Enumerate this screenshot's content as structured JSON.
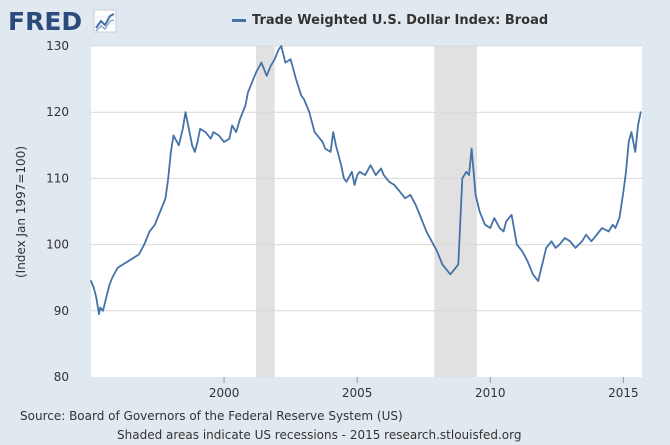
{
  "logo": {
    "text": "FRED",
    "icon": "fred-line-graph-icon"
  },
  "legend": {
    "label": "Trade Weighted U.S. Dollar Index: Broad",
    "color": "#4572a7"
  },
  "footer": {
    "source": "Source: Board of Governors of the Federal Reserve System (US)",
    "note": "Shaded areas indicate US recessions - 2015 research.stlouisfed.org"
  },
  "chart_data": {
    "type": "line",
    "ylabel": "(Index Jan 1997=100)",
    "xlabel": "",
    "xlim": [
      1995.0,
      2015.7
    ],
    "ylim": [
      80,
      130
    ],
    "x_ticks": [
      2000,
      2005,
      2010,
      2015
    ],
    "x_tick_labels": [
      "2000",
      "2005",
      "2010",
      "2015"
    ],
    "y_ticks": [
      80,
      90,
      100,
      110,
      120,
      130
    ],
    "y_tick_labels": [
      "80",
      "90",
      "100",
      "110",
      "120",
      "130"
    ],
    "recessions": [
      [
        2001.2,
        2001.9
      ],
      [
        2007.9,
        2009.5
      ]
    ],
    "grid": true,
    "series": [
      {
        "name": "Trade Weighted U.S. Dollar Index: Broad",
        "color": "#4572a7",
        "x": [
          1995.0,
          1995.1,
          1995.2,
          1995.3,
          1995.35,
          1995.45,
          1995.6,
          1995.7,
          1995.8,
          1996.0,
          1996.2,
          1996.4,
          1996.6,
          1996.8,
          1997.0,
          1997.2,
          1997.4,
          1997.5,
          1997.6,
          1997.8,
          1997.9,
          1998.0,
          1998.1,
          1998.3,
          1998.45,
          1998.55,
          1998.7,
          1998.8,
          1998.9,
          1999.0,
          1999.1,
          1999.3,
          1999.5,
          1999.6,
          1999.8,
          2000.0,
          2000.2,
          2000.3,
          2000.45,
          2000.6,
          2000.8,
          2000.9,
          2001.05,
          2001.2,
          2001.4,
          2001.6,
          2001.75,
          2001.9,
          2002.05,
          2002.15,
          2002.3,
          2002.5,
          2002.7,
          2002.9,
          2003.0,
          2003.2,
          2003.4,
          2003.5,
          2003.7,
          2003.8,
          2004.0,
          2004.1,
          2004.2,
          2004.4,
          2004.5,
          2004.6,
          2004.8,
          2004.9,
          2005.0,
          2005.1,
          2005.3,
          2005.5,
          2005.7,
          2005.9,
          2006.0,
          2006.2,
          2006.4,
          2006.6,
          2006.8,
          2007.0,
          2007.2,
          2007.4,
          2007.6,
          2007.8,
          2008.0,
          2008.2,
          2008.4,
          2008.5,
          2008.6,
          2008.8,
          2008.95,
          2009.1,
          2009.2,
          2009.3,
          2009.45,
          2009.6,
          2009.8,
          2010.0,
          2010.15,
          2010.35,
          2010.5,
          2010.6,
          2010.8,
          2011.0,
          2011.2,
          2011.4,
          2011.6,
          2011.8,
          2011.95,
          2012.1,
          2012.3,
          2012.45,
          2012.6,
          2012.8,
          2013.0,
          2013.2,
          2013.45,
          2013.6,
          2013.8,
          2014.0,
          2014.2,
          2014.45,
          2014.6,
          2014.7,
          2014.85,
          2015.0,
          2015.1,
          2015.2,
          2015.3,
          2015.45,
          2015.55,
          2015.65
        ],
        "values": [
          94.5,
          93.5,
          92.0,
          89.5,
          90.5,
          90.0,
          92.5,
          94.0,
          95.0,
          96.5,
          97.0,
          97.5,
          98.0,
          98.5,
          100.0,
          102.0,
          103.0,
          104.0,
          105.0,
          107.0,
          110.0,
          114.0,
          116.5,
          115.0,
          117.5,
          120.0,
          117.0,
          115.0,
          114.0,
          115.5,
          117.5,
          117.0,
          116.0,
          117.0,
          116.5,
          115.5,
          116.0,
          118.0,
          117.0,
          119.0,
          121.0,
          123.0,
          124.5,
          126.0,
          127.5,
          125.5,
          127.0,
          128.0,
          129.5,
          130.0,
          127.5,
          128.0,
          125.0,
          122.5,
          122.0,
          120.0,
          117.0,
          116.5,
          115.5,
          114.5,
          114.0,
          117.0,
          115.0,
          112.0,
          110.0,
          109.5,
          111.0,
          109.0,
          110.5,
          111.0,
          110.5,
          112.0,
          110.5,
          111.5,
          110.5,
          109.5,
          109.0,
          108.0,
          107.0,
          107.5,
          106.0,
          104.0,
          102.0,
          100.5,
          99.0,
          97.0,
          96.0,
          95.5,
          96.0,
          97.0,
          110.0,
          111.0,
          110.5,
          114.5,
          107.5,
          105.0,
          103.0,
          102.5,
          104.0,
          102.5,
          102.0,
          103.5,
          104.5,
          100.0,
          99.0,
          97.5,
          95.5,
          94.5,
          97.0,
          99.5,
          100.5,
          99.5,
          100.0,
          101.0,
          100.5,
          99.5,
          100.5,
          101.5,
          100.5,
          101.5,
          102.5,
          102.0,
          103.0,
          102.5,
          104.0,
          108.0,
          111.0,
          115.5,
          117.0,
          114.0,
          118.0,
          120.0
        ]
      }
    ]
  }
}
